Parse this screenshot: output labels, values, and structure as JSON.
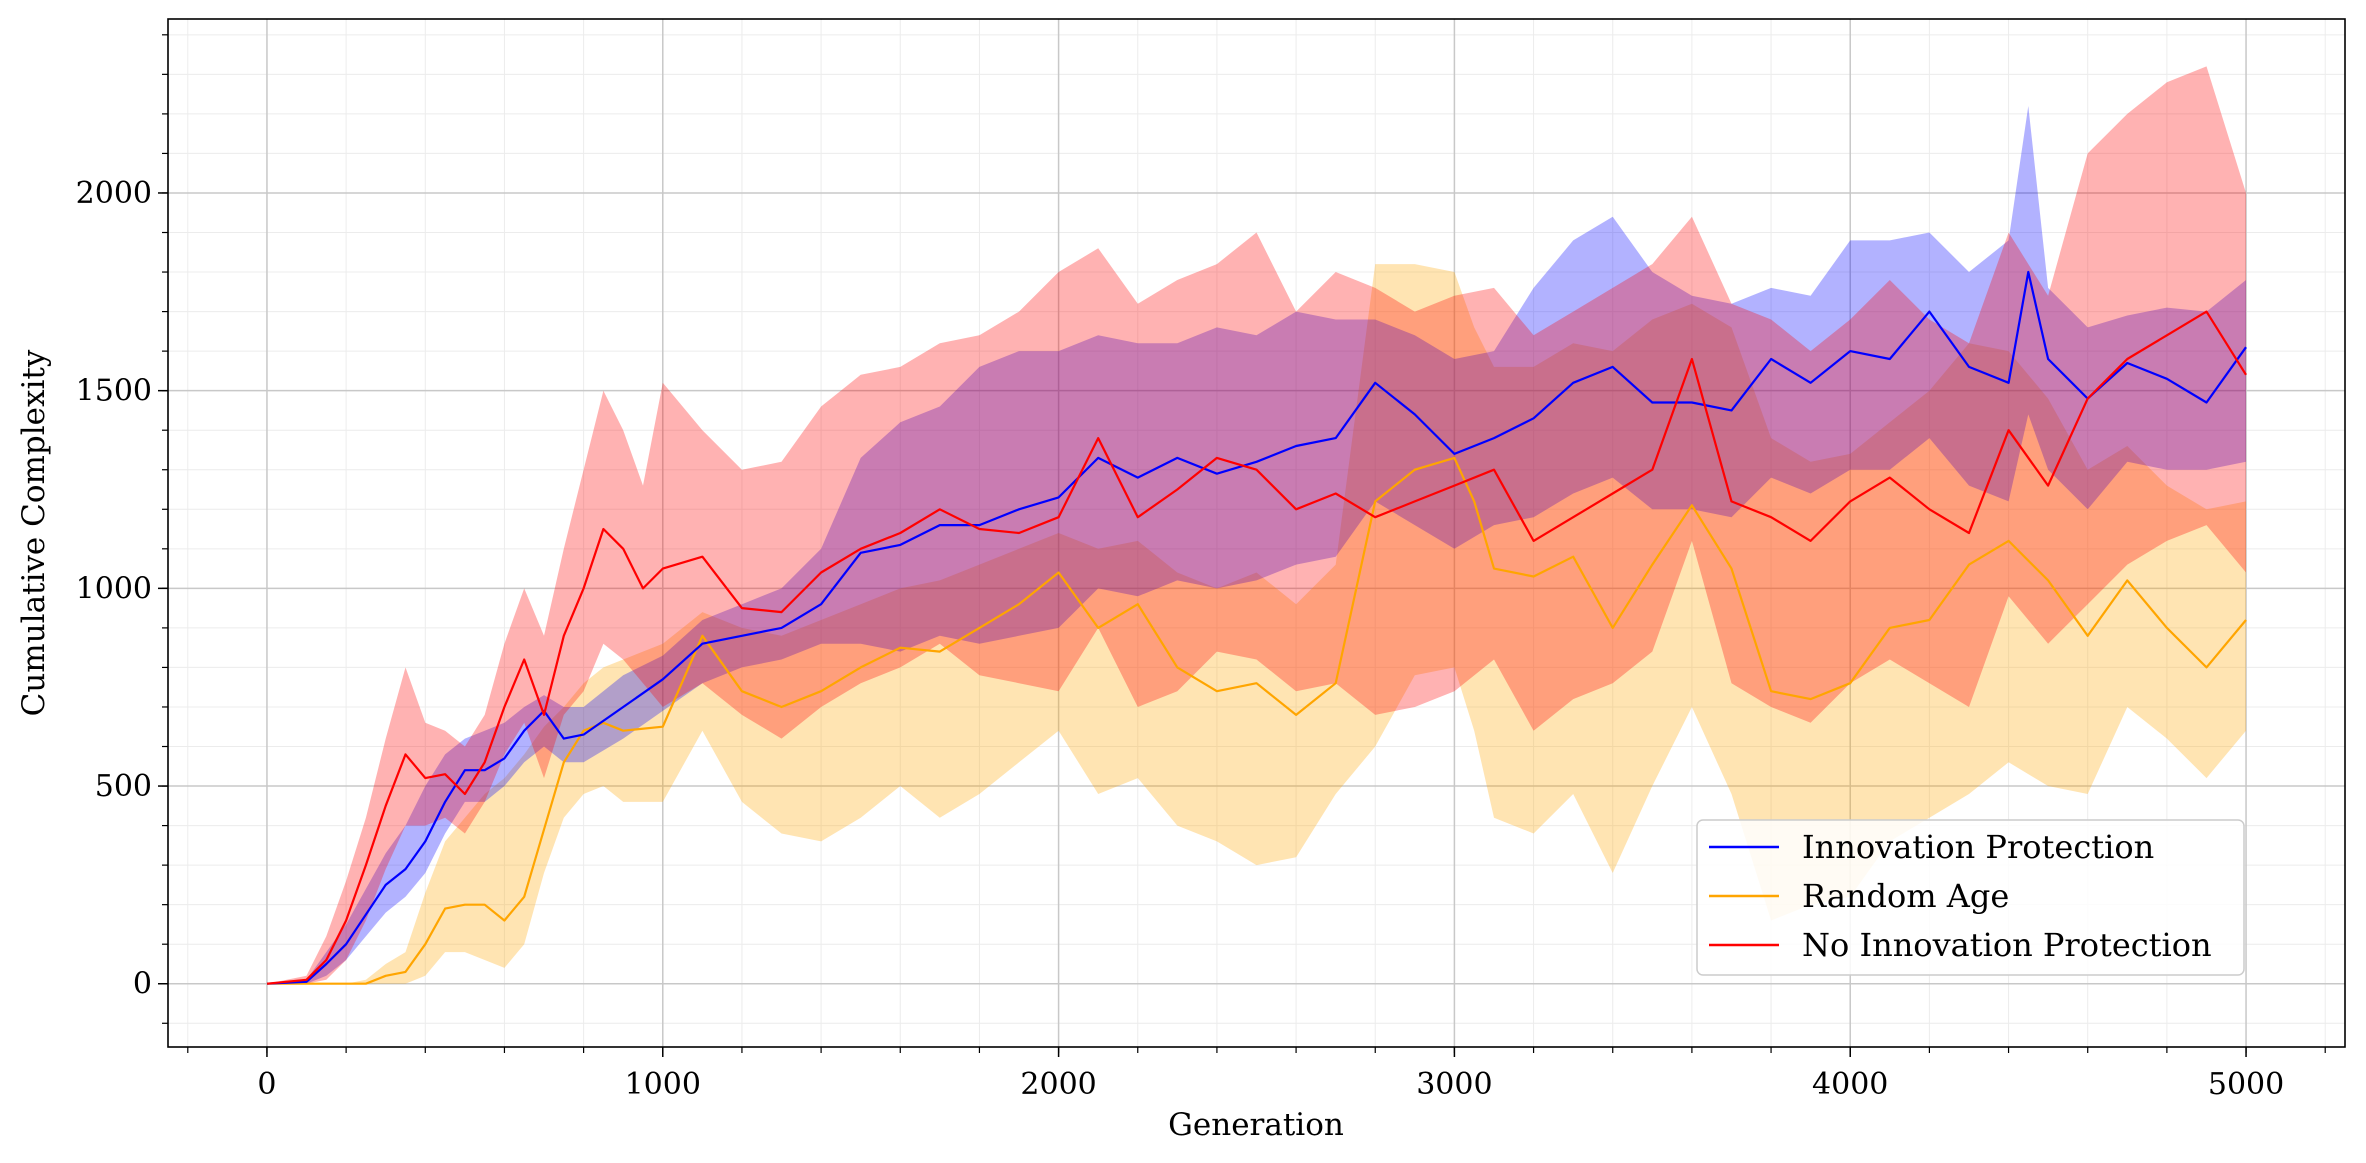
{
  "chart_data": {
    "type": "line",
    "title": "",
    "xlabel": "Generation",
    "ylabel": "Cumulative Complexity",
    "xlim": [
      -250,
      5250
    ],
    "ylim": [
      -160,
      2440
    ],
    "x_ticks": [
      0,
      1000,
      2000,
      3000,
      4000,
      5000
    ],
    "x_tick_labels": [
      "0",
      "1000",
      "2000",
      "3000",
      "4000",
      "5000"
    ],
    "y_ticks": [
      0,
      500,
      1000,
      1500,
      2000
    ],
    "y_tick_labels": [
      "0",
      "500",
      "1000",
      "1500",
      "2000"
    ],
    "grid": true,
    "minor_grid": true,
    "legend_position": "lower-right",
    "bands": "shaded region around each series spans its minimum-to-maximum range",
    "series": [
      {
        "name": "Innovation Protection",
        "color": "#0000ff",
        "x": [
          0,
          100,
          150,
          200,
          300,
          350,
          400,
          450,
          500,
          550,
          600,
          650,
          700,
          750,
          800,
          900,
          1000,
          1100,
          1200,
          1300,
          1400,
          1500,
          1600,
          1700,
          1800,
          1900,
          2000,
          2100,
          2200,
          2300,
          2400,
          2500,
          2600,
          2700,
          2800,
          2900,
          3000,
          3100,
          3200,
          3300,
          3400,
          3500,
          3600,
          3700,
          3800,
          3900,
          4000,
          4100,
          4200,
          4300,
          4400,
          4450,
          4500,
          4600,
          4700,
          4800,
          4900,
          5000
        ],
        "y": [
          0,
          5,
          50,
          100,
          250,
          290,
          360,
          460,
          540,
          540,
          570,
          640,
          690,
          620,
          630,
          700,
          770,
          860,
          880,
          900,
          960,
          1090,
          1110,
          1160,
          1160,
          1200,
          1230,
          1330,
          1280,
          1330,
          1290,
          1320,
          1360,
          1380,
          1520,
          1440,
          1340,
          1380,
          1430,
          1520,
          1560,
          1470,
          1470,
          1450,
          1580,
          1520,
          1600,
          1580,
          1700,
          1560,
          1520,
          1800,
          1580,
          1480,
          1570,
          1530,
          1470,
          1610
        ],
        "upper": [
          0,
          10,
          80,
          150,
          330,
          400,
          500,
          580,
          620,
          640,
          660,
          700,
          730,
          700,
          700,
          780,
          830,
          920,
          960,
          1000,
          1100,
          1330,
          1420,
          1460,
          1560,
          1600,
          1600,
          1640,
          1620,
          1620,
          1660,
          1640,
          1700,
          1680,
          1680,
          1640,
          1580,
          1600,
          1760,
          1880,
          1940,
          1800,
          1740,
          1720,
          1760,
          1740,
          1880,
          1880,
          1900,
          1800,
          1880,
          2220,
          1760,
          1660,
          1690,
          1710,
          1700,
          1780
        ],
        "lower": [
          0,
          0,
          20,
          60,
          180,
          220,
          280,
          380,
          460,
          460,
          500,
          560,
          600,
          560,
          560,
          620,
          690,
          760,
          800,
          820,
          860,
          860,
          840,
          880,
          860,
          880,
          900,
          1000,
          980,
          1020,
          1000,
          1020,
          1060,
          1080,
          1220,
          1160,
          1100,
          1160,
          1180,
          1240,
          1280,
          1200,
          1200,
          1180,
          1280,
          1240,
          1300,
          1300,
          1380,
          1260,
          1220,
          1440,
          1300,
          1200,
          1320,
          1300,
          1300,
          1320
        ]
      },
      {
        "name": "Random Age",
        "color": "#ffa500",
        "x": [
          0,
          100,
          200,
          250,
          300,
          350,
          400,
          450,
          500,
          550,
          600,
          650,
          700,
          750,
          800,
          850,
          900,
          1000,
          1100,
          1200,
          1300,
          1400,
          1500,
          1600,
          1700,
          1800,
          1900,
          2000,
          2100,
          2200,
          2300,
          2400,
          2500,
          2600,
          2700,
          2800,
          2900,
          3000,
          3050,
          3100,
          3200,
          3300,
          3400,
          3500,
          3600,
          3700,
          3800,
          3900,
          4000,
          4100,
          4200,
          4300,
          4400,
          4500,
          4600,
          4700,
          4800,
          4900,
          5000
        ],
        "y": [
          0,
          0,
          0,
          0,
          20,
          30,
          100,
          190,
          200,
          200,
          160,
          220,
          390,
          560,
          640,
          660,
          640,
          650,
          880,
          740,
          700,
          740,
          800,
          850,
          840,
          900,
          960,
          1040,
          900,
          960,
          800,
          740,
          760,
          680,
          760,
          1220,
          1300,
          1330,
          1220,
          1050,
          1030,
          1080,
          900,
          1060,
          1210,
          1050,
          740,
          720,
          760,
          900,
          920,
          1060,
          1120,
          1020,
          880,
          1020,
          900,
          800,
          920
        ],
        "upper": [
          0,
          0,
          0,
          10,
          50,
          80,
          230,
          360,
          420,
          480,
          520,
          580,
          650,
          700,
          760,
          800,
          820,
          860,
          940,
          900,
          880,
          920,
          960,
          1000,
          1020,
          1060,
          1100,
          1140,
          1100,
          1120,
          1040,
          1000,
          1040,
          960,
          1060,
          1820,
          1820,
          1800,
          1660,
          1560,
          1560,
          1620,
          1600,
          1680,
          1720,
          1660,
          1380,
          1320,
          1340,
          1420,
          1500,
          1620,
          1600,
          1480,
          1300,
          1360,
          1260,
          1200,
          1220
        ],
        "lower": [
          0,
          0,
          0,
          0,
          0,
          0,
          20,
          80,
          80,
          60,
          40,
          100,
          280,
          420,
          480,
          500,
          460,
          460,
          640,
          460,
          380,
          360,
          420,
          500,
          420,
          480,
          560,
          640,
          480,
          520,
          400,
          360,
          300,
          320,
          480,
          600,
          780,
          800,
          640,
          420,
          380,
          480,
          280,
          500,
          700,
          480,
          160,
          200,
          220,
          360,
          420,
          480,
          560,
          500,
          480,
          700,
          620,
          520,
          640
        ]
      },
      {
        "name": "No Innovation Protection",
        "color": "#ff0000",
        "x": [
          0,
          100,
          150,
          200,
          250,
          300,
          350,
          400,
          450,
          500,
          550,
          600,
          650,
          700,
          750,
          800,
          850,
          900,
          950,
          1000,
          1100,
          1200,
          1300,
          1400,
          1500,
          1600,
          1700,
          1800,
          1900,
          2000,
          2100,
          2200,
          2300,
          2400,
          2500,
          2600,
          2700,
          2800,
          2900,
          3000,
          3100,
          3200,
          3300,
          3400,
          3500,
          3600,
          3700,
          3800,
          3900,
          4000,
          4100,
          4200,
          4300,
          4400,
          4500,
          4600,
          4700,
          4800,
          4900,
          5000
        ],
        "y": [
          0,
          10,
          60,
          160,
          300,
          450,
          580,
          520,
          530,
          480,
          560,
          700,
          820,
          680,
          880,
          1000,
          1150,
          1100,
          1000,
          1050,
          1080,
          950,
          940,
          1040,
          1100,
          1140,
          1200,
          1150,
          1140,
          1180,
          1380,
          1180,
          1250,
          1330,
          1300,
          1200,
          1240,
          1180,
          1220,
          1260,
          1300,
          1120,
          1180,
          1240,
          1300,
          1580,
          1220,
          1180,
          1120,
          1220,
          1280,
          1200,
          1140,
          1400,
          1260,
          1480,
          1580,
          1640,
          1700,
          1540
        ],
        "upper": [
          0,
          20,
          120,
          260,
          420,
          620,
          800,
          660,
          640,
          600,
          680,
          860,
          1000,
          880,
          1100,
          1300,
          1500,
          1400,
          1260,
          1520,
          1400,
          1300,
          1320,
          1460,
          1540,
          1560,
          1620,
          1640,
          1700,
          1800,
          1860,
          1720,
          1780,
          1820,
          1900,
          1700,
          1800,
          1760,
          1700,
          1740,
          1760,
          1640,
          1700,
          1760,
          1820,
          1940,
          1720,
          1680,
          1600,
          1680,
          1780,
          1680,
          1620,
          1900,
          1740,
          2100,
          2200,
          2280,
          2320,
          2000
        ],
        "lower": [
          0,
          0,
          10,
          60,
          160,
          290,
          400,
          400,
          420,
          380,
          460,
          580,
          660,
          520,
          680,
          740,
          860,
          820,
          760,
          700,
          760,
          680,
          620,
          700,
          760,
          800,
          860,
          780,
          760,
          740,
          900,
          700,
          740,
          840,
          820,
          740,
          760,
          680,
          700,
          740,
          820,
          640,
          720,
          760,
          840,
          1120,
          760,
          700,
          660,
          760,
          820,
          760,
          700,
          980,
          860,
          960,
          1060,
          1120,
          1160,
          1040
        ]
      }
    ]
  }
}
